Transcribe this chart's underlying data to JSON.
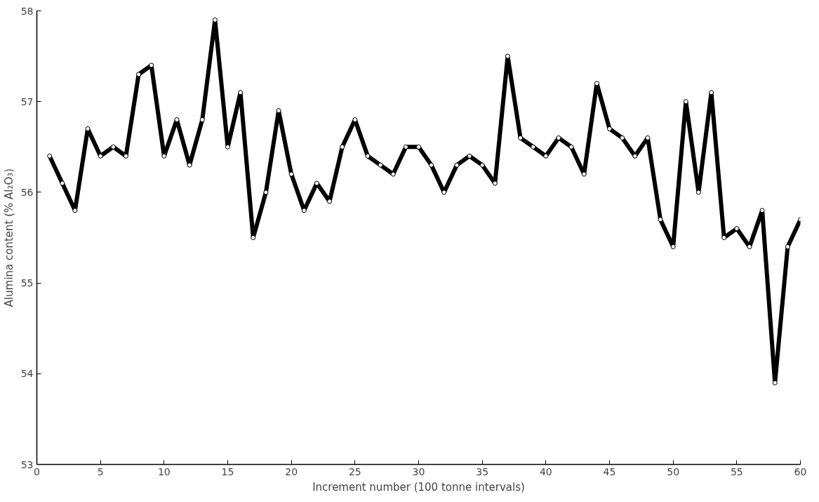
{
  "chart_data": {
    "type": "line",
    "xlabel": "Increment number (100 tonne intervals)",
    "ylabel": "Alumina content (% Al₂O₃)",
    "x": [
      1,
      2,
      3,
      4,
      5,
      6,
      7,
      8,
      9,
      10,
      11,
      12,
      13,
      14,
      15,
      16,
      17,
      18,
      19,
      20,
      21,
      22,
      23,
      24,
      25,
      26,
      27,
      28,
      29,
      30,
      31,
      32,
      33,
      34,
      35,
      36,
      37,
      38,
      39,
      40,
      41,
      42,
      43,
      44,
      45,
      46,
      47,
      48,
      49,
      50,
      51,
      52,
      53,
      54,
      55,
      56,
      57,
      58,
      59,
      60
    ],
    "series": [
      {
        "color": "#000000",
        "values": [
          56.4,
          56.1,
          55.8,
          56.7,
          56.4,
          56.5,
          56.4,
          57.3,
          57.4,
          56.4,
          56.8,
          56.3,
          56.8,
          57.9,
          56.5,
          57.1,
          55.5,
          56.0,
          56.9,
          56.2,
          55.8,
          56.1,
          55.9,
          56.5,
          56.8,
          56.4,
          56.3,
          56.2,
          56.5,
          56.5,
          56.3,
          56.0,
          56.3,
          56.4,
          56.3,
          56.1,
          57.5,
          56.6,
          56.5,
          56.4,
          56.6,
          56.5,
          56.2,
          57.2,
          56.7,
          56.6,
          56.4,
          56.6,
          55.7,
          55.4,
          57.0,
          56.0,
          57.1,
          55.5,
          55.6,
          55.4,
          55.8,
          53.9,
          55.4,
          55.7
        ]
      }
    ],
    "xlim": [
      0,
      60
    ],
    "ylim": [
      53,
      58
    ],
    "xticks": [
      0,
      5,
      10,
      15,
      20,
      25,
      30,
      35,
      40,
      45,
      50,
      55,
      60
    ],
    "yticks": [
      53,
      54,
      55,
      56,
      57,
      58
    ],
    "grid": false,
    "marker": "circle",
    "line_style": "solid"
  }
}
